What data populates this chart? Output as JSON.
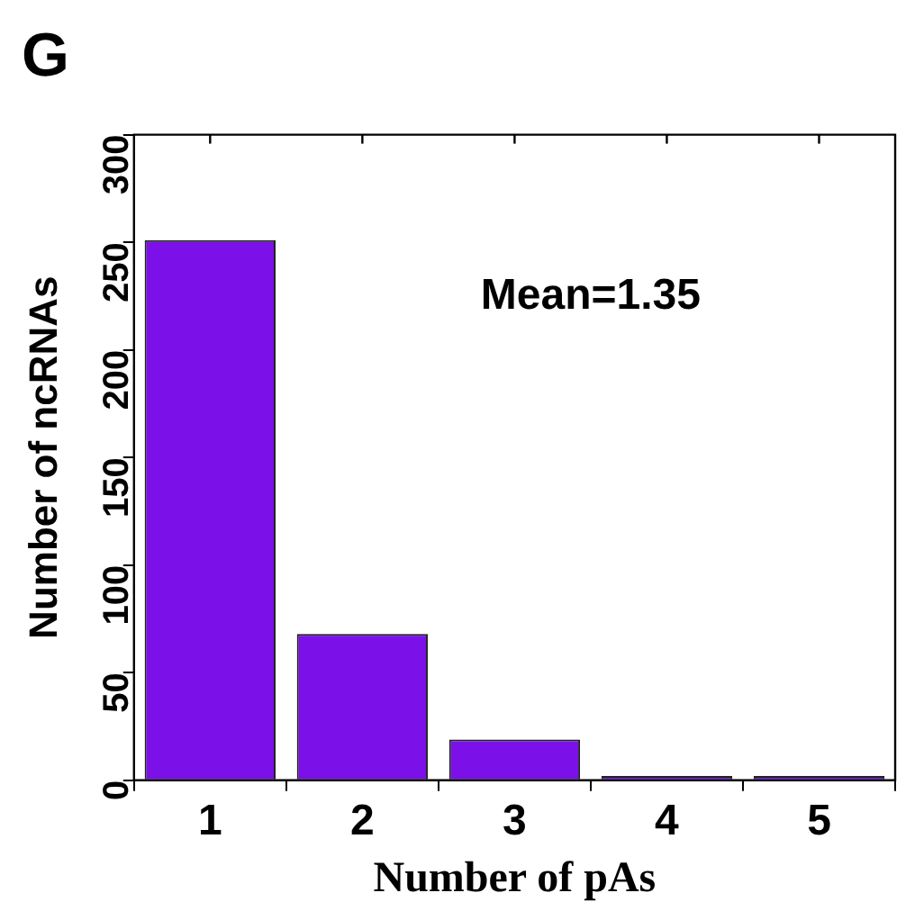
{
  "chart_data": {
    "type": "bar",
    "title": "G",
    "xlabel": "Number of pAs",
    "ylabel": "Number of ncRNAs",
    "categories": [
      "1",
      "2",
      "3",
      "4",
      "5"
    ],
    "values": [
      251,
      68,
      19,
      2,
      2
    ],
    "color": "#7b10e8",
    "ylim": [
      0,
      300
    ],
    "yticks": [
      0,
      50,
      100,
      150,
      200,
      250,
      300
    ],
    "grid": false,
    "legend": false,
    "annotations": [
      "Mean=1.35"
    ]
  }
}
